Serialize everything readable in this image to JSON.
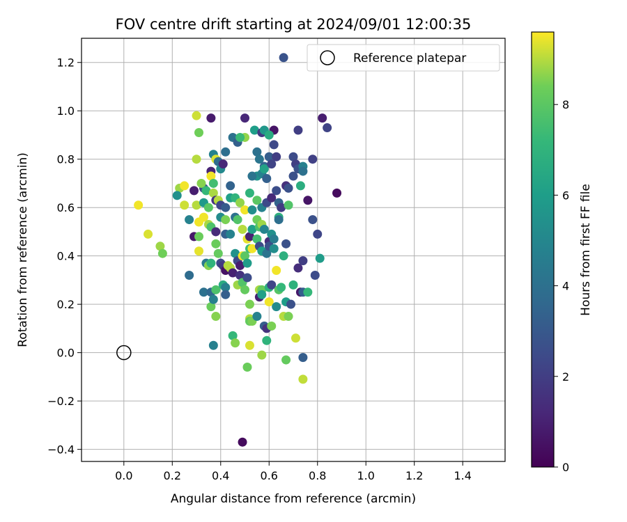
{
  "chart_data": {
    "type": "scatter",
    "title": "FOV centre drift starting at 2024/09/01 12:00:35",
    "xlabel": "Angular distance from reference (arcmin)",
    "ylabel": "Rotation from reference (arcmin)",
    "xlim": [
      -0.175,
      1.575
    ],
    "ylim": [
      -0.45,
      1.3
    ],
    "xticks": [
      0.0,
      0.2,
      0.4,
      0.6,
      0.8,
      1.0,
      1.2,
      1.4
    ],
    "xtick_labels": [
      "0.0",
      "0.2",
      "0.4",
      "0.6",
      "0.8",
      "1.0",
      "1.2",
      "1.4"
    ],
    "yticks": [
      -0.4,
      -0.2,
      0.0,
      0.2,
      0.4,
      0.6,
      0.8,
      1.0,
      1.2
    ],
    "ytick_labels": [
      "−0.4",
      "−0.2",
      "0.0",
      "0.2",
      "0.4",
      "0.6",
      "0.8",
      "1.0",
      "1.2"
    ],
    "grid": true,
    "legend": {
      "placement": "top-right",
      "entries": [
        "Reference platepar"
      ]
    },
    "reference_point": {
      "x": 0.0,
      "y": 0.0,
      "marker": "open-circle"
    },
    "colorbar": {
      "label": "Hours from first FF file",
      "min": 0,
      "max": 9.6,
      "ticks": [
        0,
        2,
        4,
        6,
        8
      ],
      "tick_labels": [
        "0",
        "2",
        "4",
        "6",
        "8"
      ],
      "colormap": "viridis"
    },
    "points": [
      [
        0.66,
        1.22,
        2.8
      ],
      [
        0.49,
        -0.37,
        0.3
      ],
      [
        0.5,
        0.97,
        1.2
      ],
      [
        0.3,
        0.98,
        9.2
      ],
      [
        0.31,
        0.91,
        8.4
      ],
      [
        0.36,
        0.97,
        0.8
      ],
      [
        0.82,
        0.97,
        0.9
      ],
      [
        0.84,
        0.93,
        2.2
      ],
      [
        0.62,
        0.92,
        0.6
      ],
      [
        0.72,
        0.92,
        2.0
      ],
      [
        0.45,
        0.89,
        4.0
      ],
      [
        0.47,
        0.87,
        3.3
      ],
      [
        0.54,
        0.92,
        6.0
      ],
      [
        0.5,
        0.89,
        8.7
      ],
      [
        0.57,
        0.91,
        1.8
      ],
      [
        0.58,
        0.92,
        5.7
      ],
      [
        0.6,
        0.9,
        6.6
      ],
      [
        0.62,
        0.86,
        2.4
      ],
      [
        0.55,
        0.83,
        4.0
      ],
      [
        0.48,
        0.89,
        7.3
      ],
      [
        0.42,
        0.83,
        3.9
      ],
      [
        0.37,
        0.82,
        4.8
      ],
      [
        0.38,
        0.8,
        9.3
      ],
      [
        0.39,
        0.79,
        3.8
      ],
      [
        0.3,
        0.8,
        9.0
      ],
      [
        0.4,
        0.76,
        5.1
      ],
      [
        0.36,
        0.75,
        1.1
      ],
      [
        0.41,
        0.78,
        1.2
      ],
      [
        0.36,
        0.73,
        9.5
      ],
      [
        0.37,
        0.7,
        7.5
      ],
      [
        0.56,
        0.8,
        4.2
      ],
      [
        0.58,
        0.77,
        3.5
      ],
      [
        0.6,
        0.81,
        3.2
      ],
      [
        0.63,
        0.81,
        2.0
      ],
      [
        0.7,
        0.81,
        2.5
      ],
      [
        0.71,
        0.78,
        2.0
      ],
      [
        0.72,
        0.76,
        2.7
      ],
      [
        0.74,
        0.77,
        4.7
      ],
      [
        0.78,
        0.8,
        2.1
      ],
      [
        0.74,
        0.75,
        4.0
      ],
      [
        0.55,
        0.73,
        5.5
      ],
      [
        0.53,
        0.73,
        4.1
      ],
      [
        0.57,
        0.74,
        4.8
      ],
      [
        0.58,
        0.76,
        6.2
      ],
      [
        0.59,
        0.72,
        3.3
      ],
      [
        0.61,
        0.78,
        2.2
      ],
      [
        0.67,
        0.69,
        1.5
      ],
      [
        0.68,
        0.68,
        2.7
      ],
      [
        0.7,
        0.73,
        2.7
      ],
      [
        0.73,
        0.69,
        6.7
      ],
      [
        0.23,
        0.68,
        8.8
      ],
      [
        0.22,
        0.65,
        5.4
      ],
      [
        0.25,
        0.69,
        9.5
      ],
      [
        0.33,
        0.68,
        2.5
      ],
      [
        0.32,
        0.7,
        8.6
      ],
      [
        0.34,
        0.67,
        7.2
      ],
      [
        0.37,
        0.66,
        8.9
      ],
      [
        0.29,
        0.67,
        0.9
      ],
      [
        0.44,
        0.69,
        3.4
      ],
      [
        0.44,
        0.64,
        6.1
      ],
      [
        0.06,
        0.61,
        9.5
      ],
      [
        0.25,
        0.61,
        9.2
      ],
      [
        0.3,
        0.61,
        9.0
      ],
      [
        0.33,
        0.62,
        5.8
      ],
      [
        0.35,
        0.6,
        8.0
      ],
      [
        0.38,
        0.63,
        1.6
      ],
      [
        0.39,
        0.63,
        9.0
      ],
      [
        0.4,
        0.61,
        2.3
      ],
      [
        0.42,
        0.6,
        3.1
      ],
      [
        0.46,
        0.64,
        7.0
      ],
      [
        0.48,
        0.62,
        8.7
      ],
      [
        0.5,
        0.59,
        9.5
      ],
      [
        0.52,
        0.66,
        7.0
      ],
      [
        0.53,
        0.59,
        5.3
      ],
      [
        0.55,
        0.63,
        8.0
      ],
      [
        0.57,
        0.6,
        4.8
      ],
      [
        0.59,
        0.62,
        2.4
      ],
      [
        0.61,
        0.64,
        1.3
      ],
      [
        0.63,
        0.67,
        2.6
      ],
      [
        0.64,
        0.62,
        3.4
      ],
      [
        0.65,
        0.6,
        1.9
      ],
      [
        0.68,
        0.61,
        7.8
      ],
      [
        0.76,
        0.63,
        0.6
      ],
      [
        0.78,
        0.55,
        2.7
      ],
      [
        0.8,
        0.49,
        2.3
      ],
      [
        0.88,
        0.66,
        0.3
      ],
      [
        0.27,
        0.55,
        4.8
      ],
      [
        0.31,
        0.54,
        9.5
      ],
      [
        0.33,
        0.56,
        9.5
      ],
      [
        0.35,
        0.53,
        8.9
      ],
      [
        0.36,
        0.52,
        7.7
      ],
      [
        0.38,
        0.5,
        1.3
      ],
      [
        0.4,
        0.56,
        5.2
      ],
      [
        0.42,
        0.55,
        8.5
      ],
      [
        0.42,
        0.49,
        3.3
      ],
      [
        0.44,
        0.49,
        4.8
      ],
      [
        0.46,
        0.56,
        4.0
      ],
      [
        0.47,
        0.55,
        7.8
      ],
      [
        0.49,
        0.51,
        9.0
      ],
      [
        0.51,
        0.47,
        9.4
      ],
      [
        0.52,
        0.48,
        1.0
      ],
      [
        0.53,
        0.51,
        6.1
      ],
      [
        0.55,
        0.55,
        8.4
      ],
      [
        0.56,
        0.52,
        7.7
      ],
      [
        0.57,
        0.53,
        8.8
      ],
      [
        0.58,
        0.51,
        4.9
      ],
      [
        0.6,
        0.46,
        1.4
      ],
      [
        0.61,
        0.49,
        5.4
      ],
      [
        0.62,
        0.47,
        4.5
      ],
      [
        0.64,
        0.56,
        6.8
      ],
      [
        0.64,
        0.55,
        3.9
      ],
      [
        0.67,
        0.45,
        2.7
      ],
      [
        0.1,
        0.49,
        9.3
      ],
      [
        0.15,
        0.44,
        8.8
      ],
      [
        0.16,
        0.41,
        8.4
      ],
      [
        0.29,
        0.48,
        0.7
      ],
      [
        0.31,
        0.48,
        8.3
      ],
      [
        0.31,
        0.42,
        9.4
      ],
      [
        0.34,
        0.37,
        4.4
      ],
      [
        0.35,
        0.36,
        8.6
      ],
      [
        0.36,
        0.37,
        7.0
      ],
      [
        0.38,
        0.45,
        8.3
      ],
      [
        0.39,
        0.41,
        8.2
      ],
      [
        0.4,
        0.37,
        2.4
      ],
      [
        0.41,
        0.36,
        1.8
      ],
      [
        0.42,
        0.34,
        0.5
      ],
      [
        0.43,
        0.36,
        9.0
      ],
      [
        0.44,
        0.35,
        9.0
      ],
      [
        0.45,
        0.33,
        1.0
      ],
      [
        0.46,
        0.41,
        5.5
      ],
      [
        0.47,
        0.38,
        2.4
      ],
      [
        0.48,
        0.36,
        0.9
      ],
      [
        0.49,
        0.4,
        9.5
      ],
      [
        0.5,
        0.4,
        8.0
      ],
      [
        0.51,
        0.37,
        5.9
      ],
      [
        0.52,
        0.43,
        7.4
      ],
      [
        0.53,
        0.43,
        9.5
      ],
      [
        0.55,
        0.47,
        7.5
      ],
      [
        0.56,
        0.44,
        2.5
      ],
      [
        0.57,
        0.42,
        6.0
      ],
      [
        0.59,
        0.41,
        4.1
      ],
      [
        0.6,
        0.44,
        2.7
      ],
      [
        0.62,
        0.43,
        5.3
      ],
      [
        0.63,
        0.34,
        9.5
      ],
      [
        0.66,
        0.4,
        6.8
      ],
      [
        0.72,
        0.35,
        1.4
      ],
      [
        0.74,
        0.38,
        2.0
      ],
      [
        0.79,
        0.32,
        2.5
      ],
      [
        0.81,
        0.39,
        5.9
      ],
      [
        0.27,
        0.32,
        3.8
      ],
      [
        0.33,
        0.25,
        4.0
      ],
      [
        0.36,
        0.25,
        3.6
      ],
      [
        0.36,
        0.19,
        8.3
      ],
      [
        0.37,
        0.22,
        4.7
      ],
      [
        0.38,
        0.26,
        7.7
      ],
      [
        0.38,
        0.15,
        8.6
      ],
      [
        0.37,
        0.03,
        4.7
      ],
      [
        0.41,
        0.28,
        6.6
      ],
      [
        0.42,
        0.27,
        4.7
      ],
      [
        0.42,
        0.24,
        3.2
      ],
      [
        0.45,
        0.07,
        7.2
      ],
      [
        0.46,
        0.04,
        8.6
      ],
      [
        0.47,
        0.28,
        8.8
      ],
      [
        0.48,
        0.32,
        1.6
      ],
      [
        0.49,
        0.29,
        7.8
      ],
      [
        0.5,
        0.26,
        8.2
      ],
      [
        0.51,
        0.31,
        2.5
      ],
      [
        0.52,
        0.2,
        8.5
      ],
      [
        0.52,
        0.14,
        9.0
      ],
      [
        0.52,
        0.13,
        8.2
      ],
      [
        0.53,
        0.13,
        8.5
      ],
      [
        0.55,
        0.15,
        4.8
      ],
      [
        0.56,
        0.23,
        1.0
      ],
      [
        0.56,
        0.26,
        8.9
      ],
      [
        0.57,
        0.26,
        8.2
      ],
      [
        0.57,
        0.24,
        6.1
      ],
      [
        0.58,
        0.11,
        3.2
      ],
      [
        0.59,
        0.05,
        7.0
      ],
      [
        0.59,
        0.1,
        1.6
      ],
      [
        0.6,
        0.21,
        9.5
      ],
      [
        0.6,
        0.27,
        6.8
      ],
      [
        0.61,
        0.11,
        8.5
      ],
      [
        0.61,
        0.28,
        2.3
      ],
      [
        0.63,
        0.19,
        5.2
      ],
      [
        0.64,
        0.26,
        7.9
      ],
      [
        0.65,
        0.27,
        7.2
      ],
      [
        0.66,
        0.15,
        9.0
      ],
      [
        0.67,
        0.21,
        6.0
      ],
      [
        0.68,
        0.15,
        8.5
      ],
      [
        0.69,
        0.2,
        2.7
      ],
      [
        0.7,
        0.28,
        6.9
      ],
      [
        0.73,
        0.25,
        0.7
      ],
      [
        0.74,
        0.25,
        3.2
      ],
      [
        0.76,
        0.25,
        7.2
      ],
      [
        0.52,
        0.03,
        9.3
      ],
      [
        0.51,
        -0.06,
        8.3
      ],
      [
        0.57,
        -0.01,
        8.8
      ],
      [
        0.67,
        -0.03,
        8.2
      ],
      [
        0.71,
        0.06,
        9.2
      ],
      [
        0.74,
        -0.02,
        3.2
      ],
      [
        0.74,
        -0.11,
        9.1
      ]
    ]
  }
}
